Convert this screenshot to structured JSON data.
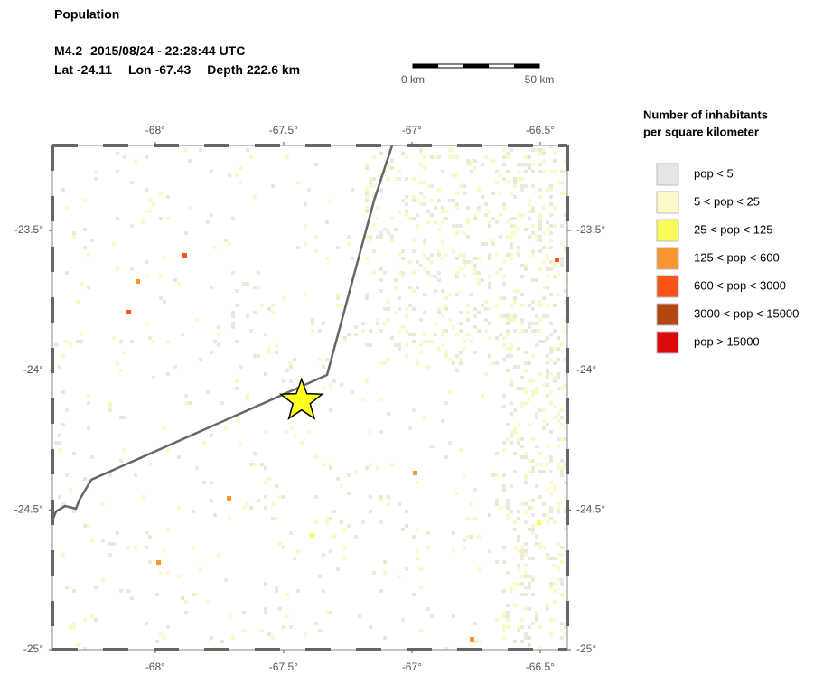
{
  "header": {
    "title": "Population",
    "event": {
      "magnitude": "M4.2",
      "time": "2015/08/24 - 22:28:44 UTC",
      "lat_label": "Lat",
      "lat": -24.11,
      "lon_label": "Lon",
      "lon": -67.43,
      "depth_label": "Depth",
      "depth": "222.6 km"
    }
  },
  "scale_bar": {
    "start": "0 km",
    "end": "50 km"
  },
  "map": {
    "lonlim": [
      -68.401,
      -66.394
    ],
    "latlim": [
      -23.196,
      -25
    ],
    "lonticks": [
      {
        "value": -68,
        "label": "-68°"
      },
      {
        "value": -67.5,
        "label": "-67.5°"
      },
      {
        "value": -67,
        "label": "-67°"
      },
      {
        "value": -66.5,
        "label": "-66.5°"
      }
    ],
    "latticks": [
      {
        "value": -23.5,
        "label": "-23.5°"
      },
      {
        "value": -24,
        "label": "-24°"
      },
      {
        "value": -24.5,
        "label": "-24.5°"
      },
      {
        "value": -25,
        "label": "-25°"
      }
    ]
  },
  "legend": {
    "title": [
      "Number of inhabitants",
      "per square kilometer"
    ],
    "items": [
      {
        "label": "pop < 5",
        "color": "#e6e6e6"
      },
      {
        "label": "5 < pop < 25",
        "color": "#fafac8"
      },
      {
        "label": "25 < pop < 125",
        "color": "#fafa5a"
      },
      {
        "label": "125 < pop < 600",
        "color": "#fa9632"
      },
      {
        "label": "600 < pop < 3000",
        "color": "#fa5518"
      },
      {
        "label": "3000 < pop < 15000",
        "color": "#b4460f"
      },
      {
        "label": "pop > 15000",
        "color": "#dc0a0a"
      }
    ]
  }
}
